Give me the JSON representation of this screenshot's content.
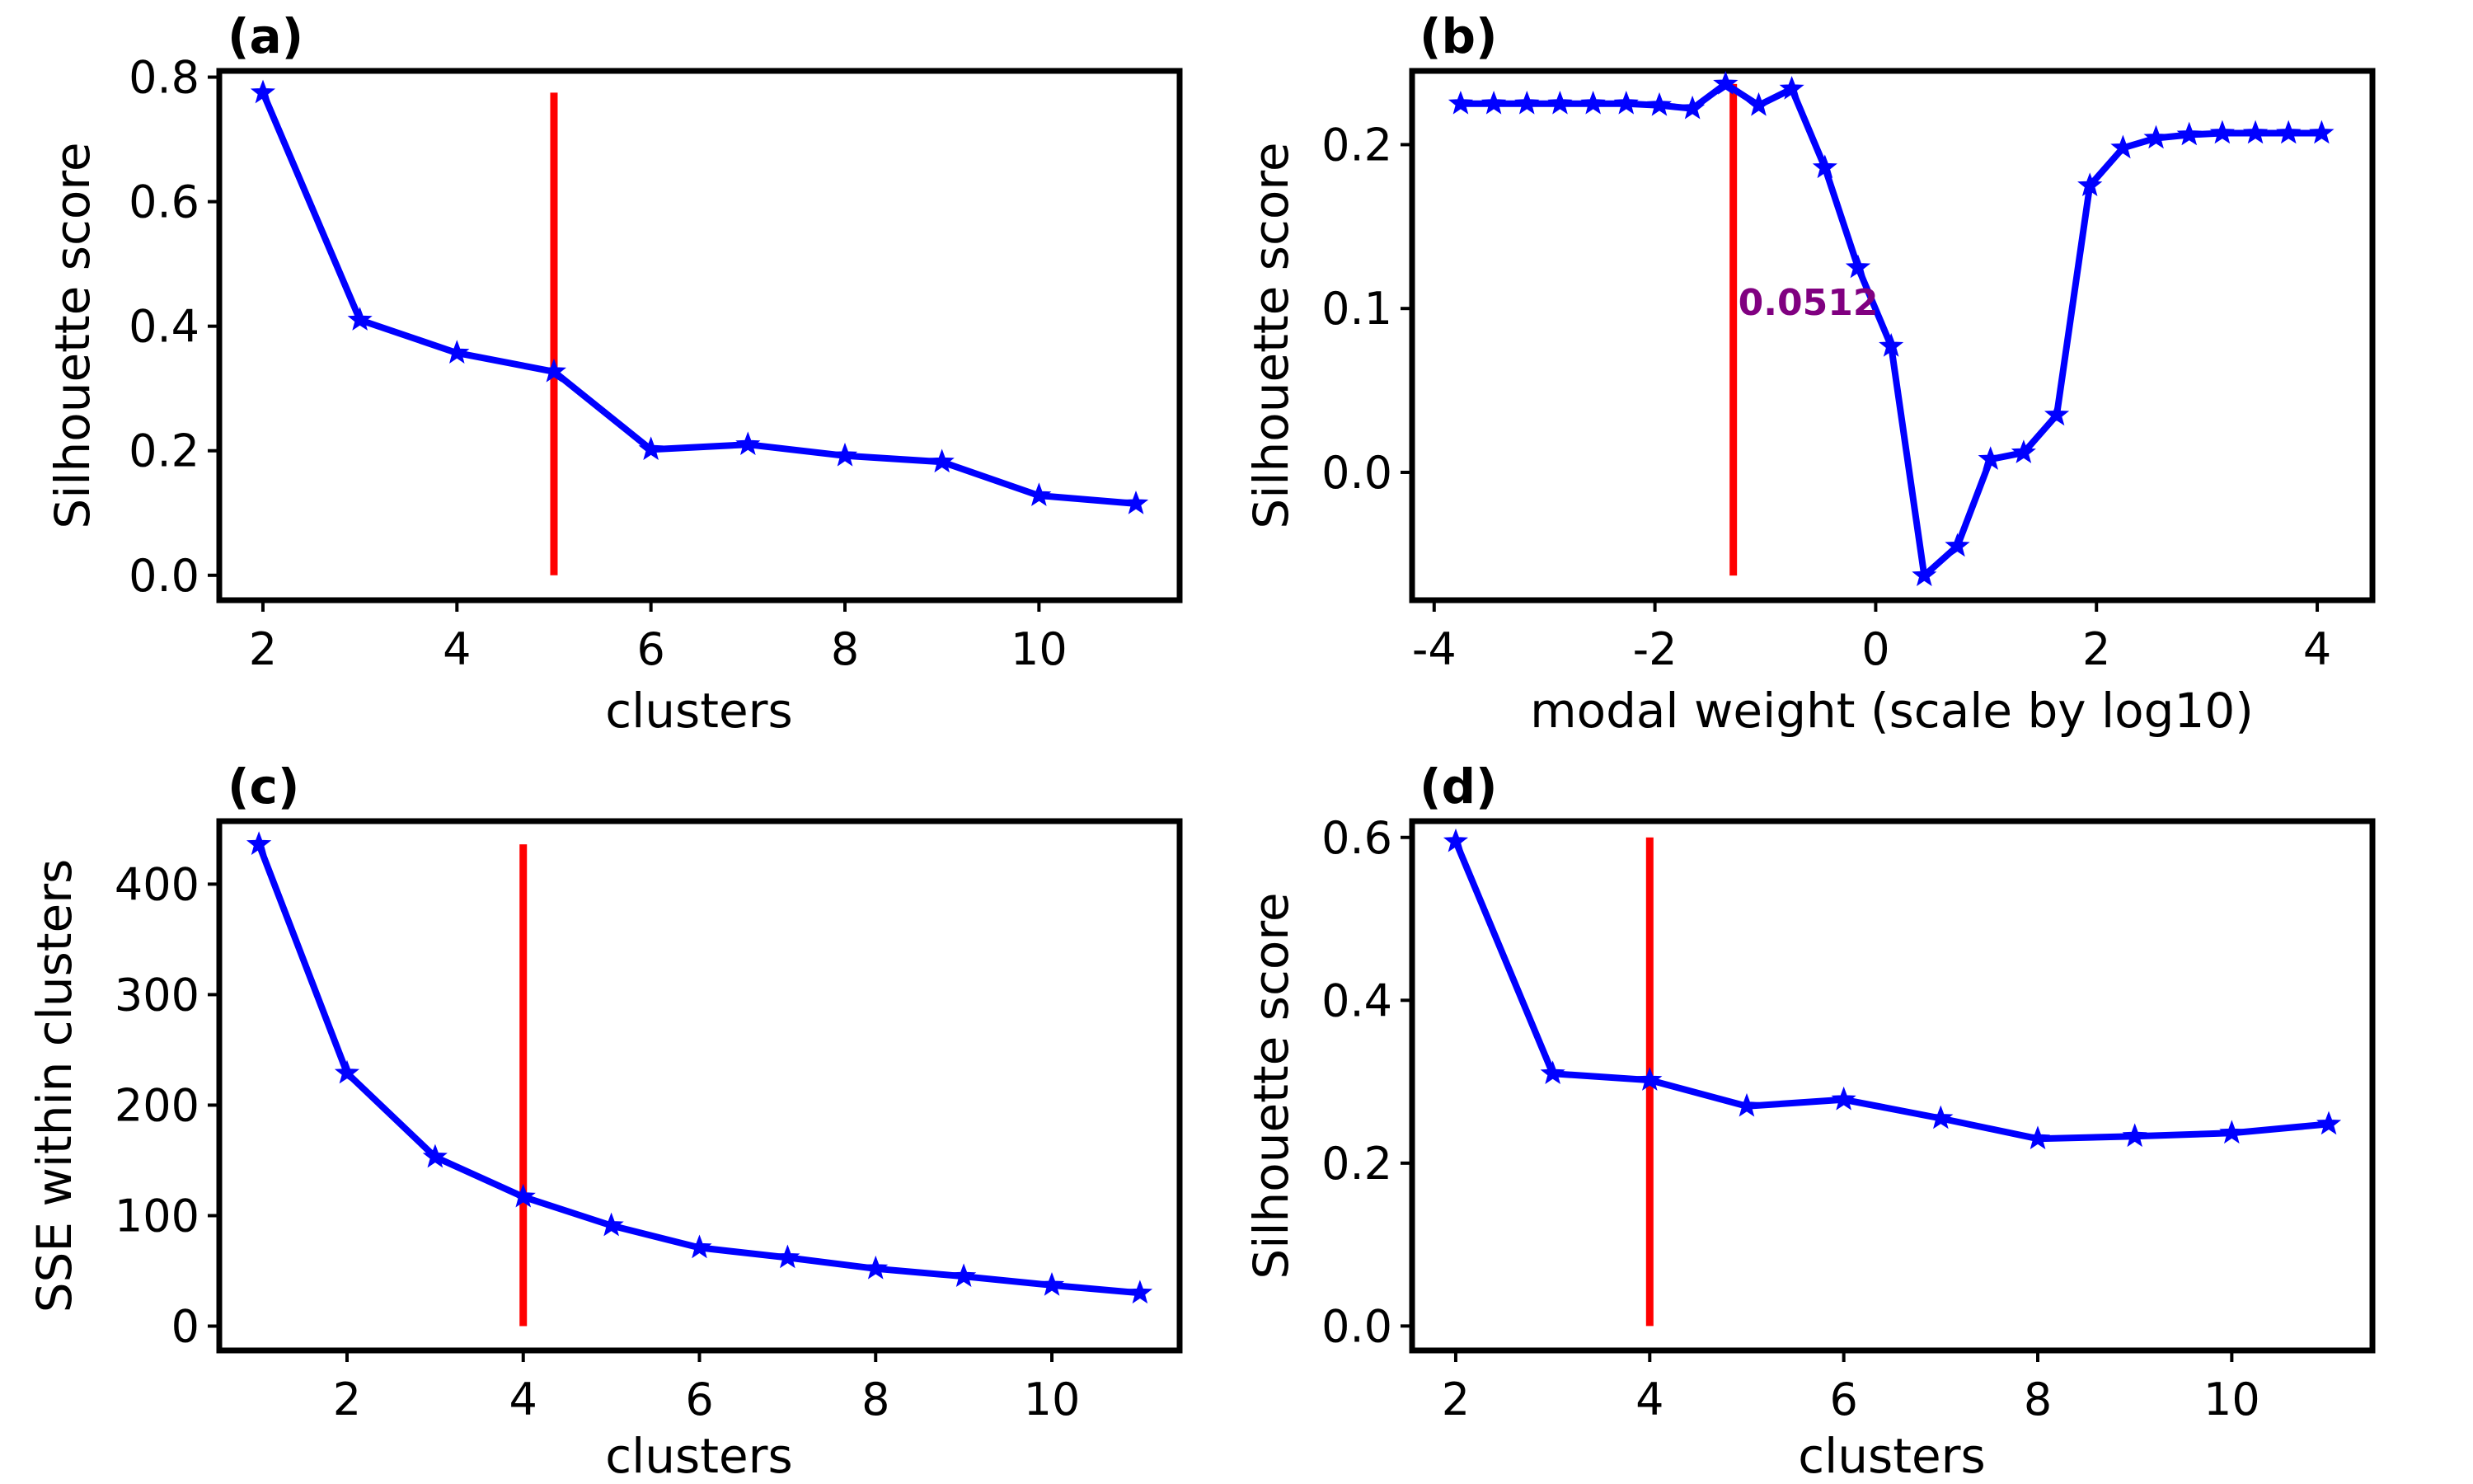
{
  "colors": {
    "series": "#0000ff",
    "marker": "#0000ff",
    "vline": "#ff0000",
    "annotation": "#800080",
    "frame": "#000000"
  },
  "chart_data": [
    {
      "type": "line",
      "panel_label": "(a)",
      "xlabel": "clusters",
      "ylabel": "Silhouette score",
      "xlim": [
        1.55,
        11.45
      ],
      "ylim": [
        -0.04,
        0.81
      ],
      "xticks": [
        2,
        4,
        6,
        8,
        10
      ],
      "xtick_labels": [
        "2",
        "4",
        "6",
        "8",
        "10"
      ],
      "yticks": [
        0.0,
        0.2,
        0.4,
        0.6,
        0.8
      ],
      "ytick_labels": [
        "0.0",
        "0.2",
        "0.4",
        "0.6",
        "0.8"
      ],
      "series": [
        {
          "x": [
            2,
            3,
            4,
            5,
            6,
            7,
            8,
            9,
            10,
            11
          ],
          "y": [
            0.775,
            0.41,
            0.357,
            0.327,
            0.202,
            0.21,
            0.192,
            0.182,
            0.128,
            0.115
          ],
          "marker": "star"
        }
      ],
      "vline": {
        "x": 5,
        "y_range": [
          0.0,
          0.775
        ]
      }
    },
    {
      "type": "line",
      "panel_label": "(b)",
      "xlabel": "modal weight (scale by log10)",
      "ylabel": "Silhouette score",
      "xlim": [
        -4.2,
        4.5
      ],
      "ylim": [
        -0.078,
        0.245
      ],
      "xticks": [
        -4,
        -2,
        0,
        2,
        4
      ],
      "xtick_labels": [
        "-4",
        "-2",
        "0",
        "2",
        "4"
      ],
      "yticks": [
        0.0,
        0.1,
        0.2
      ],
      "ytick_labels": [
        "0.0",
        "0.1",
        "0.2"
      ],
      "series": [
        {
          "x": [
            -3.76,
            -3.46,
            -3.16,
            -2.86,
            -2.56,
            -2.26,
            -1.96,
            -1.66,
            -1.36,
            -1.06,
            -0.76,
            -0.46,
            -0.16,
            0.14,
            0.44,
            0.74,
            1.04,
            1.34,
            1.64,
            1.94,
            2.24,
            2.54,
            2.84,
            3.14,
            3.44,
            3.74,
            4.04
          ],
          "y": [
            0.225,
            0.225,
            0.225,
            0.225,
            0.225,
            0.225,
            0.224,
            0.222,
            0.237,
            0.224,
            0.234,
            0.186,
            0.125,
            0.077,
            -0.063,
            -0.045,
            0.008,
            0.012,
            0.035,
            0.175,
            0.198,
            0.204,
            0.206,
            0.207,
            0.207,
            0.207,
            0.207
          ],
          "marker": "star"
        }
      ],
      "vline": {
        "x": -1.29,
        "y_range": [
          -0.063,
          0.237
        ]
      },
      "annotations": [
        {
          "text": "0.0512",
          "x": -1.29,
          "y": 0.096
        }
      ]
    },
    {
      "type": "line",
      "panel_label": "(c)",
      "xlabel": "clusters",
      "ylabel": "SSE within clusters",
      "xlim": [
        0.55,
        11.45
      ],
      "ylim": [
        -22,
        457
      ],
      "xticks": [
        2,
        4,
        6,
        8,
        10
      ],
      "xtick_labels": [
        "2",
        "4",
        "6",
        "8",
        "10"
      ],
      "yticks": [
        0,
        100,
        200,
        300,
        400
      ],
      "ytick_labels": [
        "0",
        "100",
        "200",
        "300",
        "400"
      ],
      "series": [
        {
          "x": [
            1,
            2,
            3,
            4,
            5,
            6,
            7,
            8,
            9,
            10,
            11
          ],
          "y": [
            436,
            229,
            153,
            117,
            91,
            71,
            62,
            52,
            45,
            37,
            30
          ],
          "marker": "star"
        }
      ],
      "vline": {
        "x": 4,
        "y_range": [
          0,
          436
        ]
      }
    },
    {
      "type": "line",
      "panel_label": "(d)",
      "xlabel": "clusters",
      "ylabel": "Silhouette score",
      "xlim": [
        1.55,
        11.45
      ],
      "ylim": [
        -0.03,
        0.62
      ],
      "xticks": [
        2,
        4,
        6,
        8,
        10
      ],
      "xtick_labels": [
        "2",
        "4",
        "6",
        "8",
        "10"
      ],
      "yticks": [
        0.0,
        0.2,
        0.4,
        0.6
      ],
      "ytick_labels": [
        "0.0",
        "0.2",
        "0.4",
        "0.6"
      ],
      "series": [
        {
          "x": [
            2,
            3,
            4,
            5,
            6,
            7,
            8,
            9,
            10,
            11
          ],
          "y": [
            0.595,
            0.31,
            0.302,
            0.27,
            0.278,
            0.255,
            0.23,
            0.233,
            0.237,
            0.248
          ],
          "marker": "star"
        }
      ],
      "vline": {
        "x": 4,
        "y_range": [
          0.0,
          0.6
        ]
      }
    }
  ]
}
